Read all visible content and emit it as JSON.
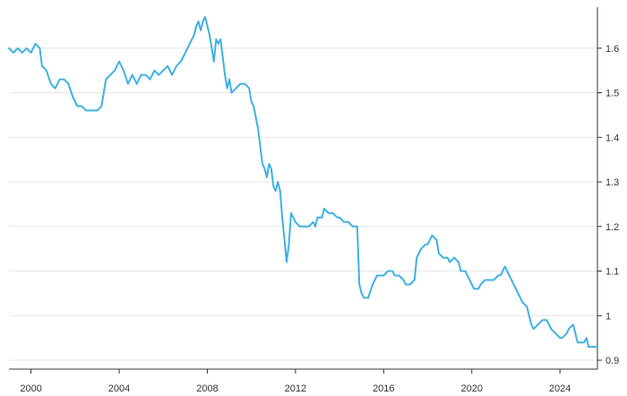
{
  "chart_data": {
    "type": "line",
    "title": "",
    "xlabel": "",
    "ylabel": "",
    "x_ticks": [
      "2000",
      "2004",
      "2008",
      "2012",
      "2016",
      "2020",
      "2024"
    ],
    "y_ticks": [
      "0.9",
      "1",
      "1.1",
      "1.2",
      "1.3",
      "1.4",
      "1.5",
      "1.6"
    ],
    "xlim": [
      1999.0,
      2025.7
    ],
    "ylim": [
      0.88,
      1.68
    ],
    "grid": true,
    "y_axis_side": "right",
    "line_color": "#3fb1e3",
    "series": [
      {
        "points": [
          [
            1999.0,
            1.6
          ],
          [
            1999.2,
            1.59
          ],
          [
            1999.4,
            1.6
          ],
          [
            1999.6,
            1.59
          ],
          [
            1999.8,
            1.6
          ],
          [
            2000.0,
            1.59
          ],
          [
            2000.2,
            1.61
          ],
          [
            2000.4,
            1.6
          ],
          [
            2000.5,
            1.56
          ],
          [
            2000.7,
            1.55
          ],
          [
            2000.9,
            1.52
          ],
          [
            2001.1,
            1.51
          ],
          [
            2001.3,
            1.53
          ],
          [
            2001.5,
            1.53
          ],
          [
            2001.7,
            1.52
          ],
          [
            2001.9,
            1.49
          ],
          [
            2002.1,
            1.47
          ],
          [
            2002.3,
            1.47
          ],
          [
            2002.5,
            1.46
          ],
          [
            2002.7,
            1.46
          ],
          [
            2003.0,
            1.46
          ],
          [
            2003.2,
            1.47
          ],
          [
            2003.4,
            1.53
          ],
          [
            2003.6,
            1.54
          ],
          [
            2003.8,
            1.55
          ],
          [
            2004.0,
            1.57
          ],
          [
            2004.2,
            1.55
          ],
          [
            2004.4,
            1.52
          ],
          [
            2004.6,
            1.54
          ],
          [
            2004.8,
            1.52
          ],
          [
            2005.0,
            1.54
          ],
          [
            2005.2,
            1.54
          ],
          [
            2005.4,
            1.53
          ],
          [
            2005.6,
            1.55
          ],
          [
            2005.8,
            1.54
          ],
          [
            2006.0,
            1.55
          ],
          [
            2006.2,
            1.56
          ],
          [
            2006.4,
            1.54
          ],
          [
            2006.6,
            1.56
          ],
          [
            2006.8,
            1.57
          ],
          [
            2007.0,
            1.59
          ],
          [
            2007.2,
            1.61
          ],
          [
            2007.4,
            1.63
          ],
          [
            2007.5,
            1.65
          ],
          [
            2007.6,
            1.66
          ],
          [
            2007.7,
            1.64
          ],
          [
            2007.8,
            1.66
          ],
          [
            2007.9,
            1.67
          ],
          [
            2008.0,
            1.65
          ],
          [
            2008.1,
            1.63
          ],
          [
            2008.2,
            1.6
          ],
          [
            2008.3,
            1.57
          ],
          [
            2008.4,
            1.62
          ],
          [
            2008.5,
            1.61
          ],
          [
            2008.6,
            1.62
          ],
          [
            2008.7,
            1.58
          ],
          [
            2008.8,
            1.54
          ],
          [
            2008.9,
            1.51
          ],
          [
            2009.0,
            1.53
          ],
          [
            2009.1,
            1.5
          ],
          [
            2009.3,
            1.51
          ],
          [
            2009.5,
            1.52
          ],
          [
            2009.7,
            1.52
          ],
          [
            2009.9,
            1.51
          ],
          [
            2010.0,
            1.48
          ],
          [
            2010.1,
            1.47
          ],
          [
            2010.3,
            1.42
          ],
          [
            2010.4,
            1.38
          ],
          [
            2010.5,
            1.34
          ],
          [
            2010.6,
            1.33
          ],
          [
            2010.7,
            1.31
          ],
          [
            2010.8,
            1.34
          ],
          [
            2010.9,
            1.33
          ],
          [
            2011.0,
            1.29
          ],
          [
            2011.1,
            1.28
          ],
          [
            2011.2,
            1.3
          ],
          [
            2011.3,
            1.28
          ],
          [
            2011.4,
            1.22
          ],
          [
            2011.5,
            1.17
          ],
          [
            2011.6,
            1.12
          ],
          [
            2011.7,
            1.16
          ],
          [
            2011.8,
            1.23
          ],
          [
            2011.9,
            1.22
          ],
          [
            2012.0,
            1.21
          ],
          [
            2012.2,
            1.2
          ],
          [
            2012.4,
            1.2
          ],
          [
            2012.6,
            1.2
          ],
          [
            2012.8,
            1.21
          ],
          [
            2012.9,
            1.2
          ],
          [
            2013.0,
            1.22
          ],
          [
            2013.2,
            1.22
          ],
          [
            2013.3,
            1.24
          ],
          [
            2013.5,
            1.23
          ],
          [
            2013.7,
            1.23
          ],
          [
            2013.9,
            1.22
          ],
          [
            2014.0,
            1.22
          ],
          [
            2014.2,
            1.21
          ],
          [
            2014.4,
            1.21
          ],
          [
            2014.6,
            1.2
          ],
          [
            2014.8,
            1.2
          ],
          [
            2014.9,
            1.07
          ],
          [
            2015.0,
            1.05
          ],
          [
            2015.1,
            1.04
          ],
          [
            2015.3,
            1.04
          ],
          [
            2015.5,
            1.07
          ],
          [
            2015.7,
            1.09
          ],
          [
            2015.8,
            1.09
          ],
          [
            2016.0,
            1.09
          ],
          [
            2016.2,
            1.1
          ],
          [
            2016.4,
            1.1
          ],
          [
            2016.5,
            1.09
          ],
          [
            2016.7,
            1.09
          ],
          [
            2016.9,
            1.08
          ],
          [
            2017.0,
            1.07
          ],
          [
            2017.2,
            1.07
          ],
          [
            2017.4,
            1.08
          ],
          [
            2017.5,
            1.13
          ],
          [
            2017.7,
            1.15
          ],
          [
            2017.9,
            1.16
          ],
          [
            2018.0,
            1.16
          ],
          [
            2018.2,
            1.18
          ],
          [
            2018.4,
            1.17
          ],
          [
            2018.5,
            1.14
          ],
          [
            2018.7,
            1.13
          ],
          [
            2018.9,
            1.13
          ],
          [
            2019.0,
            1.12
          ],
          [
            2019.2,
            1.13
          ],
          [
            2019.4,
            1.12
          ],
          [
            2019.5,
            1.1
          ],
          [
            2019.7,
            1.1
          ],
          [
            2019.9,
            1.08
          ],
          [
            2020.1,
            1.06
          ],
          [
            2020.3,
            1.06
          ],
          [
            2020.4,
            1.07
          ],
          [
            2020.6,
            1.08
          ],
          [
            2020.8,
            1.08
          ],
          [
            2021.0,
            1.08
          ],
          [
            2021.2,
            1.09
          ],
          [
            2021.3,
            1.09
          ],
          [
            2021.5,
            1.11
          ],
          [
            2021.7,
            1.09
          ],
          [
            2021.9,
            1.07
          ],
          [
            2022.0,
            1.06
          ],
          [
            2022.2,
            1.04
          ],
          [
            2022.3,
            1.03
          ],
          [
            2022.5,
            1.02
          ],
          [
            2022.6,
            1.0
          ],
          [
            2022.7,
            0.98
          ],
          [
            2022.8,
            0.97
          ],
          [
            2023.0,
            0.98
          ],
          [
            2023.2,
            0.99
          ],
          [
            2023.4,
            0.99
          ],
          [
            2023.6,
            0.97
          ],
          [
            2023.8,
            0.96
          ],
          [
            2024.0,
            0.95
          ],
          [
            2024.1,
            0.95
          ],
          [
            2024.3,
            0.96
          ],
          [
            2024.4,
            0.97
          ],
          [
            2024.6,
            0.98
          ],
          [
            2024.7,
            0.96
          ],
          [
            2024.8,
            0.94
          ],
          [
            2025.0,
            0.94
          ],
          [
            2025.1,
            0.94
          ],
          [
            2025.2,
            0.95
          ],
          [
            2025.3,
            0.93
          ],
          [
            2025.5,
            0.93
          ],
          [
            2025.7,
            0.93
          ]
        ]
      }
    ]
  }
}
